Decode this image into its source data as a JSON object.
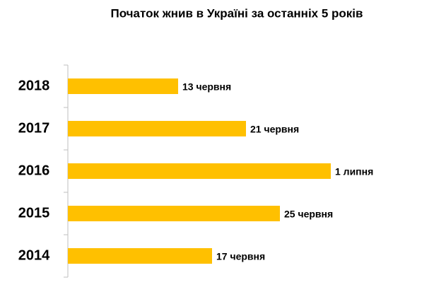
{
  "chart_data": {
    "type": "bar",
    "orientation": "horizontal",
    "title": "Початок жнив в Україні за останніх 5 років",
    "categories": [
      "2018",
      "2017",
      "2016",
      "2015",
      "2014"
    ],
    "values": [
      "06-13",
      "06-21",
      "07-01",
      "06-25",
      "06-17"
    ],
    "value_labels": [
      "13 червня",
      "21 червня",
      "1 липня",
      "25 червня",
      "17 червня"
    ],
    "color": "#ffc000",
    "xlim": [
      "05-31",
      "07-10"
    ]
  }
}
